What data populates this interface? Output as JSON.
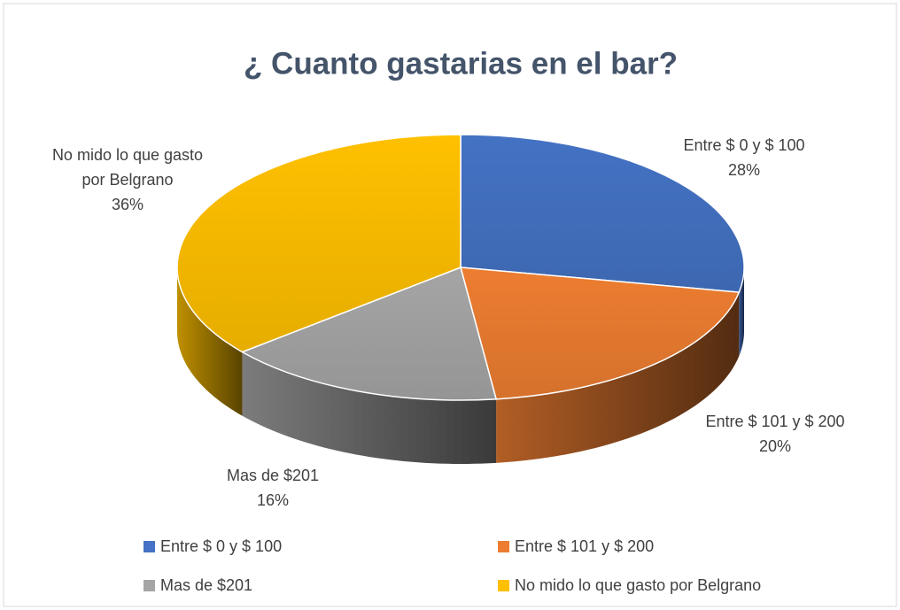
{
  "chart_data": {
    "type": "pie",
    "title": "¿ Cuanto gastarias en el bar?",
    "categories": [
      "Entre $ 0 y $ 100",
      "Entre $ 101 y $ 200",
      "Mas de $201",
      "No mido lo que gasto por Belgrano"
    ],
    "values": [
      28,
      20,
      16,
      36
    ],
    "value_labels": [
      "28%",
      "20%",
      "16%",
      "36%"
    ],
    "colors": [
      "#4472c4",
      "#ed7d31",
      "#a5a5a5",
      "#ffc000"
    ],
    "legend": "bottom"
  }
}
